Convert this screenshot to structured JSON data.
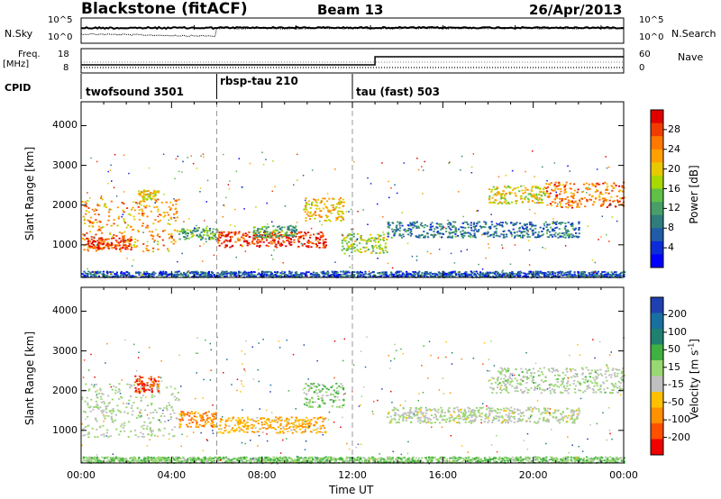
{
  "header": {
    "station_label": "Blackstone (fitACF)",
    "beam_label": "Beam 13",
    "date_label": "26/Apr/2013"
  },
  "noise_panel": {
    "left_label": "N.Sky",
    "right_label": "N.Search",
    "tick_hi": "10^5",
    "tick_lo": "10^0"
  },
  "freq_panel": {
    "label_line1": "Freq.",
    "label_line2": "[MHz]",
    "ticks_left": [
      "18",
      "8"
    ],
    "ticks_right": [
      "60",
      "0"
    ],
    "right_label": "Nave"
  },
  "cpid": {
    "label": "CPID",
    "modes": [
      {
        "name": "twofsound 3501",
        "start_hour": 0
      },
      {
        "name": "rbsp-tau 210",
        "start_hour": 6
      },
      {
        "name": "tau (fast) 503",
        "start_hour": 12
      }
    ]
  },
  "power_colorbar": {
    "label": "Power [dB]",
    "ticks": [
      "28",
      "24",
      "20",
      "16",
      "12",
      "8",
      "4"
    ],
    "colors": [
      "#e00000",
      "#f03c00",
      "#ff7800",
      "#ffa000",
      "#e8c800",
      "#a8d800",
      "#60c048",
      "#48a068",
      "#2f7d7d",
      "#205ca8",
      "#0c2cd8",
      "#0000ff"
    ]
  },
  "velocity_colorbar": {
    "label": "Velocity [m s",
    "label_sup": "-1",
    "label_end": "]",
    "ticks": [
      "200",
      "100",
      "50",
      "15",
      "-15",
      "-50",
      "-100",
      "-200"
    ],
    "colors": [
      "#2040b0",
      "#1870a0",
      "#208070",
      "#40b040",
      "#98d870",
      "#c0c0c0",
      "#ffc000",
      "#ff9000",
      "#ff5000",
      "#f00000"
    ]
  },
  "chart_data": {
    "type": "heatmap",
    "title": "Blackstone (fitACF) Beam 13 26/Apr/2013",
    "xlabel": "Time UT",
    "ylabel": "Slant Range [km]",
    "x_ticks": [
      "00:00",
      "04:00",
      "08:00",
      "12:00",
      "16:00",
      "20:00",
      "00:00"
    ],
    "x_range_hours": [
      0,
      24
    ],
    "y_ticks": [
      "1000",
      "2000",
      "3000",
      "4000"
    ],
    "y_range_km": [
      180,
      4600
    ],
    "panels": [
      {
        "quantity": "Power",
        "unit": "dB",
        "scale": [
          0,
          30
        ],
        "bands": [
          {
            "t0": 0.0,
            "t1": 4.3,
            "r0": 850,
            "r1": 2200,
            "value": 22
          },
          {
            "t0": 0.2,
            "t1": 2.2,
            "r0": 900,
            "r1": 1200,
            "value": 27
          },
          {
            "t0": 2.5,
            "t1": 3.4,
            "r0": 2150,
            "r1": 2400,
            "value": 18
          },
          {
            "t0": 4.3,
            "t1": 6.0,
            "r0": 1150,
            "r1": 1450,
            "value": 12
          },
          {
            "t0": 6.0,
            "t1": 10.8,
            "r0": 950,
            "r1": 1350,
            "value": 27
          },
          {
            "t0": 7.5,
            "t1": 9.5,
            "r0": 1200,
            "r1": 1500,
            "value": 12
          },
          {
            "t0": 9.8,
            "t1": 11.6,
            "r0": 1600,
            "r1": 2200,
            "value": 20
          },
          {
            "t0": 11.5,
            "t1": 13.5,
            "r0": 800,
            "r1": 1300,
            "value": 16
          },
          {
            "t0": 13.5,
            "t1": 22.0,
            "r0": 1200,
            "r1": 1600,
            "value": 8
          },
          {
            "t0": 18.0,
            "t1": 20.5,
            "r0": 2050,
            "r1": 2500,
            "value": 18
          },
          {
            "t0": 20.5,
            "t1": 24.0,
            "r0": 1950,
            "r1": 2600,
            "value": 24
          },
          {
            "t0": 0.0,
            "t1": 24.0,
            "r0": 200,
            "r1": 350,
            "value": 6
          }
        ]
      },
      {
        "quantity": "Velocity",
        "unit": "m s^-1",
        "scale": [
          -200,
          200
        ],
        "bands": [
          {
            "t0": 0.0,
            "t1": 4.3,
            "r0": 850,
            "r1": 2200,
            "value": 0
          },
          {
            "t0": 2.3,
            "t1": 3.4,
            "r0": 1950,
            "r1": 2400,
            "value": -150
          },
          {
            "t0": 4.3,
            "t1": 6.0,
            "r0": 1100,
            "r1": 1500,
            "value": -100
          },
          {
            "t0": 6.0,
            "t1": 10.8,
            "r0": 950,
            "r1": 1350,
            "value": -70
          },
          {
            "t0": 9.8,
            "t1": 11.6,
            "r0": 1600,
            "r1": 2200,
            "value": 20
          },
          {
            "t0": 13.5,
            "t1": 22.0,
            "r0": 1200,
            "r1": 1600,
            "value": -5
          },
          {
            "t0": 18.0,
            "t1": 24.0,
            "r0": 1950,
            "r1": 2600,
            "value": 5
          },
          {
            "t0": 0.0,
            "t1": 24.0,
            "r0": 200,
            "r1": 350,
            "value": 30
          }
        ]
      }
    ]
  }
}
